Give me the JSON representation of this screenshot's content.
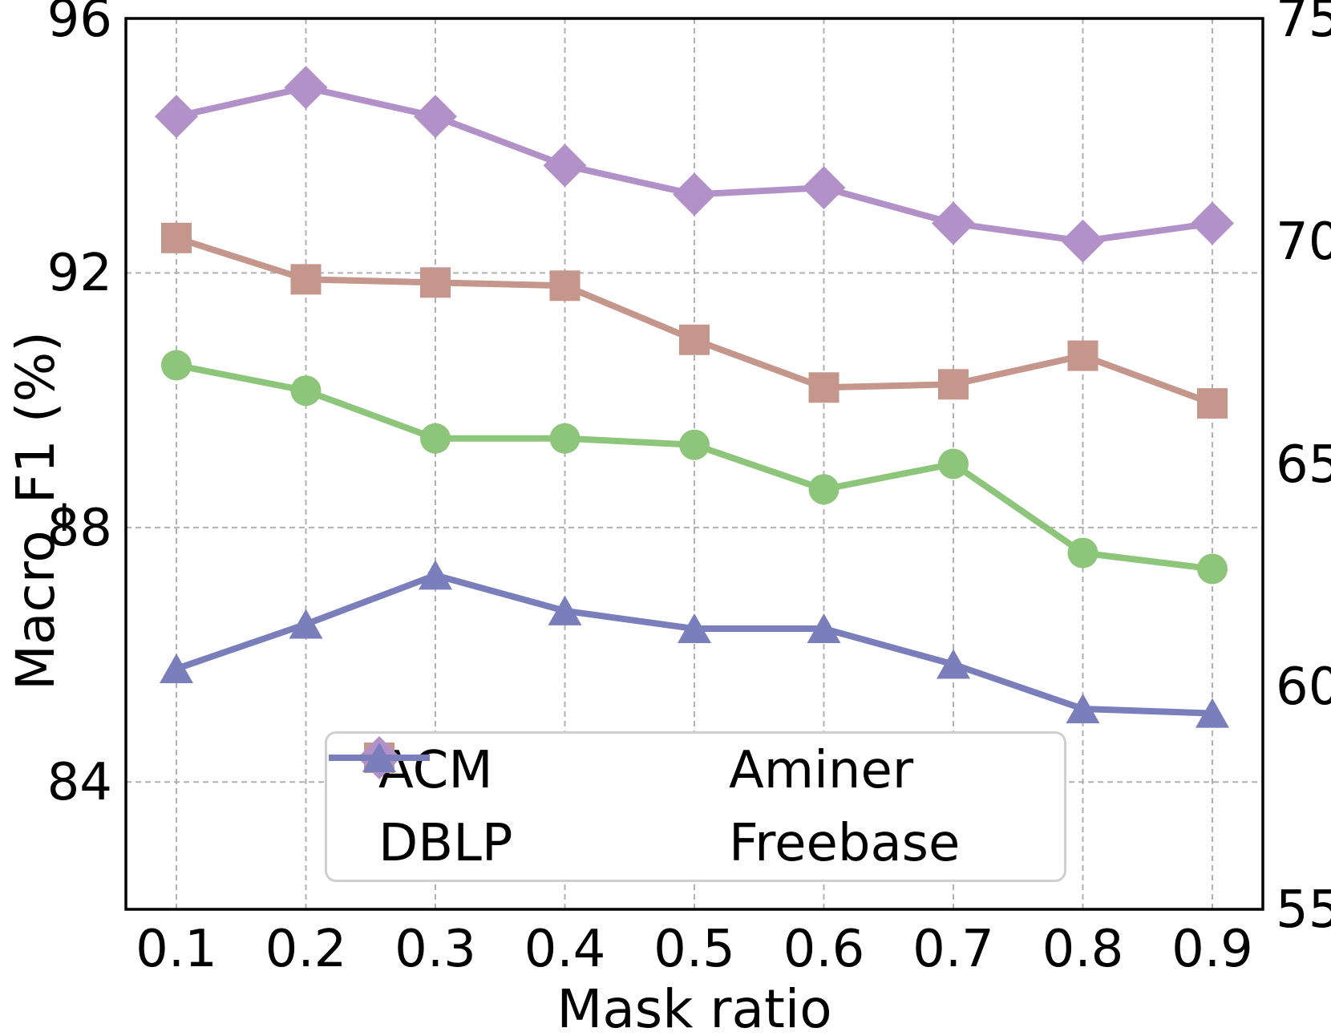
{
  "chart_data": {
    "type": "line",
    "title": "",
    "xlabel": "Mask ratio",
    "ylabel_left": "Macro_F1 (%)",
    "x": [
      0.1,
      0.2,
      0.3,
      0.4,
      0.5,
      0.6,
      0.7,
      0.8,
      0.9
    ],
    "x_tick_labels": [
      "0.1",
      "0.2",
      "0.3",
      "0.4",
      "0.5",
      "0.6",
      "0.7",
      "0.8",
      "0.9"
    ],
    "x_range": [
      0.061,
      0.939
    ],
    "left_axis": {
      "range": [
        82,
        96
      ],
      "ticks": [
        96,
        92,
        88,
        84
      ],
      "gridlines": [
        92,
        88,
        84
      ]
    },
    "right_axis": {
      "range": [
        55,
        75
      ],
      "ticks": [
        75,
        70,
        65,
        60,
        55
      ]
    },
    "grid": "dashed gray, vertical at each x tick, horizontal at left-axis ticks",
    "legend_position": "lower center, 2 columns",
    "legend_order": [
      "ACM",
      "DBLP",
      "Aminer",
      "Freebase"
    ],
    "series": [
      {
        "name": "ACM",
        "axis": "left",
        "marker": "circle",
        "color": "#8dc57b",
        "values": [
          90.55,
          90.15,
          89.4,
          89.4,
          89.3,
          88.6,
          89.0,
          87.6,
          87.35
        ]
      },
      {
        "name": "DBLP",
        "axis": "left",
        "marker": "square",
        "color": "#c5968c",
        "values": [
          92.55,
          91.9,
          91.85,
          91.8,
          90.95,
          90.2,
          90.25,
          90.7,
          89.95
        ]
      },
      {
        "name": "Aminer",
        "axis": "right",
        "marker": "diamond",
        "color": "#b291c8",
        "values": [
          72.8,
          73.45,
          72.8,
          71.7,
          71.05,
          71.2,
          70.4,
          70.0,
          70.4
        ]
      },
      {
        "name": "Freebase",
        "axis": "right",
        "marker": "triangle-up",
        "color": "#7a7fbb",
        "values": [
          60.4,
          61.4,
          62.5,
          61.7,
          61.3,
          61.3,
          60.5,
          59.5,
          59.4
        ]
      }
    ]
  },
  "colors": {
    "background": "#ffffff",
    "spine": "#000000",
    "grid": "#b0b0b0",
    "text": "#000000",
    "legend_border": "#cfcfcf"
  }
}
